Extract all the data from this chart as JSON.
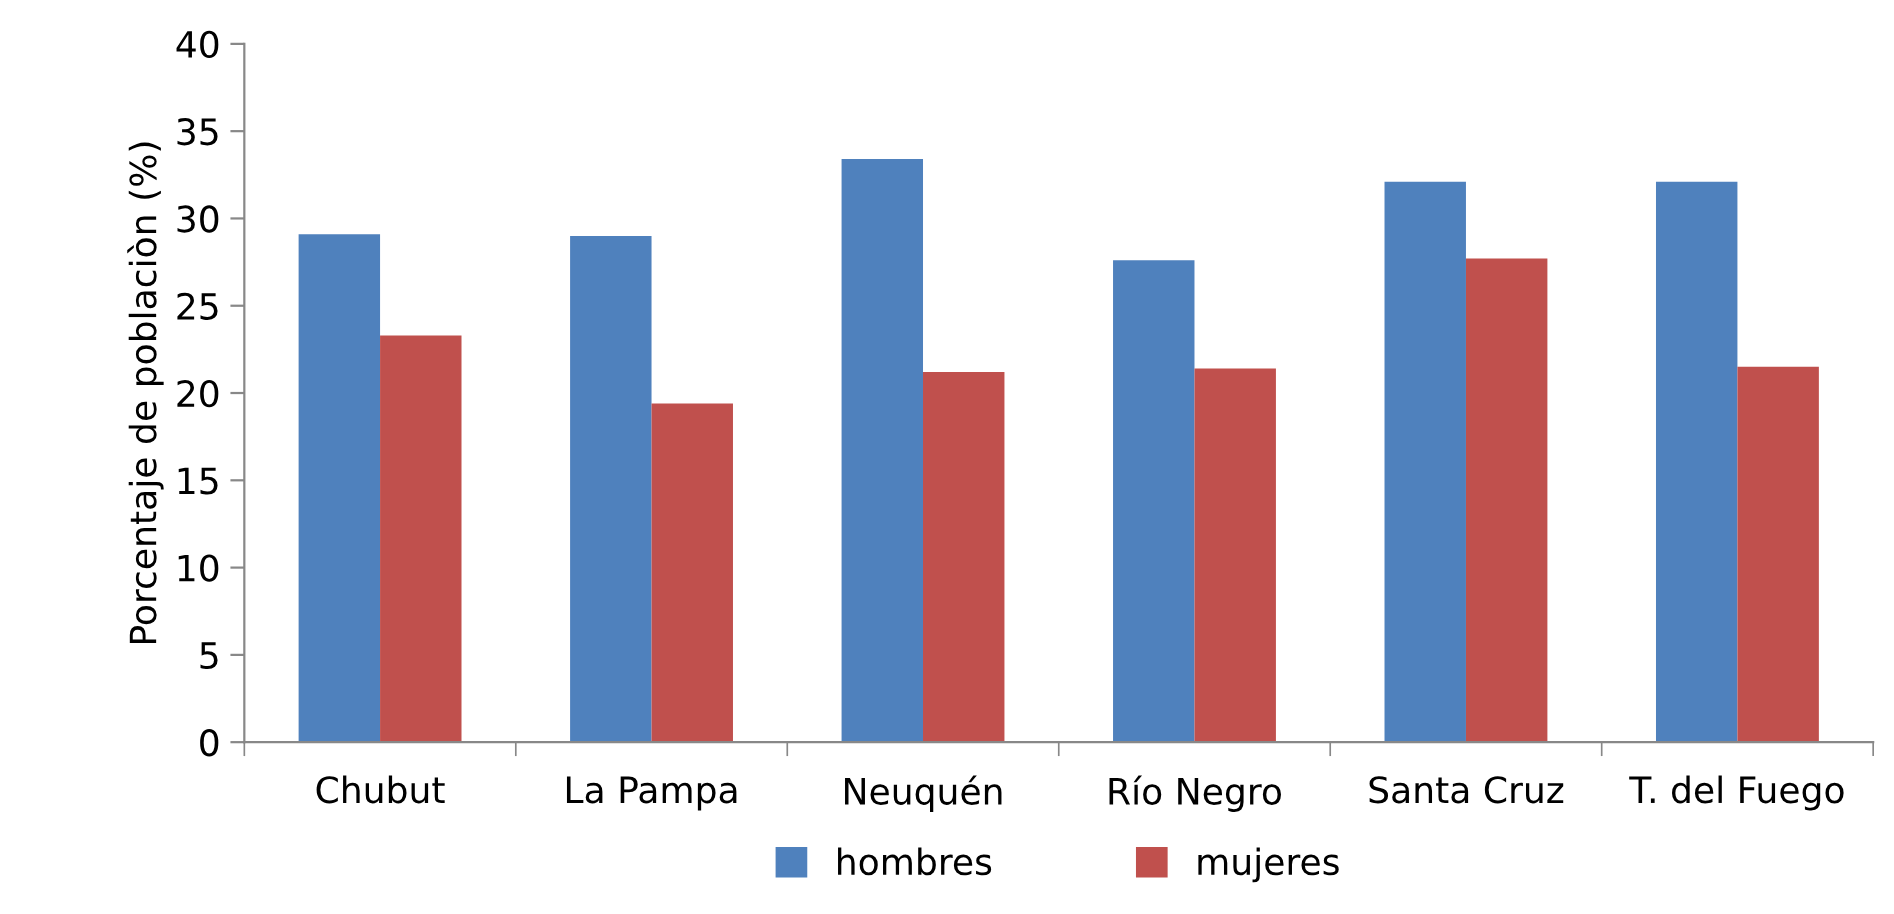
{
  "chart_data": {
    "type": "bar",
    "ylabel": "Porcentaje de poblaciòn (%)",
    "categories": [
      "Chubut",
      "La Pampa",
      "Neuquén",
      "Río Negro",
      "Santa Cruz",
      "T. del Fuego"
    ],
    "series": [
      {
        "name": "hombres",
        "color": "#4f81bd",
        "values": [
          29.1,
          29.0,
          33.4,
          27.6,
          32.1,
          32.1
        ]
      },
      {
        "name": "mujeres",
        "color": "#c0504d",
        "values": [
          23.3,
          19.4,
          21.2,
          21.4,
          27.7,
          21.5
        ]
      }
    ],
    "ylim": [
      0,
      40
    ],
    "yticks": [
      0,
      5,
      10,
      15,
      20,
      25,
      30,
      35,
      40
    ],
    "grid": false,
    "legend": "bottom"
  }
}
